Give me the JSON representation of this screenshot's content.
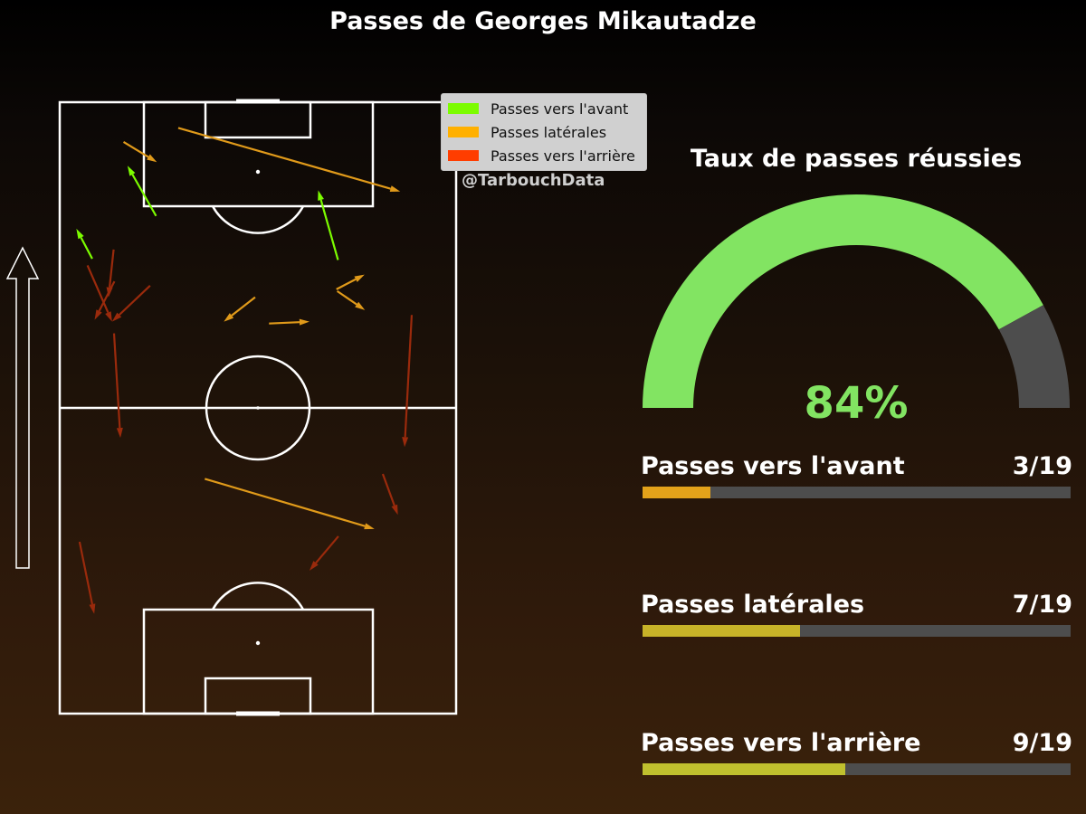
{
  "title": "Passes de Georges Mikautadze",
  "credit": "@TarbouchData",
  "colors": {
    "forward": "#7cfc00",
    "lateral": "#e09a1a",
    "backward": "#9a2a0c",
    "gauge_success": "#82e462",
    "gauge_rest": "#4d4d4d",
    "bar_track": "#4d4d4d"
  },
  "legend": [
    {
      "label": "Passes vers l'avant",
      "color": "#7cfc00"
    },
    {
      "label": "Passes latérales",
      "color": "#ffb000"
    },
    {
      "label": "Passes vers l'arrière",
      "color": "#ff3d00"
    }
  ],
  "direction_icon": "up-arrow-icon",
  "chart_data": [
    {
      "type": "pass-map",
      "pitch": {
        "length": 100,
        "width": 100,
        "orientation": "vertical",
        "attack_direction": "up"
      },
      "passes": {
        "forward": [
          {
            "x1": 24.3,
            "y1": 81.4,
            "x2": 17.1,
            "y2": 89.6
          },
          {
            "x1": 8.2,
            "y1": 74.4,
            "x2": 4.2,
            "y2": 79.3
          },
          {
            "x1": 70.2,
            "y1": 74.2,
            "x2": 65.2,
            "y2": 85.6
          }
        ],
        "lateral": [
          {
            "x1": 16.1,
            "y1": 93.5,
            "x2": 24.5,
            "y2": 90.2
          },
          {
            "x1": 29.9,
            "y1": 95.8,
            "x2": 85.9,
            "y2": 85.4
          },
          {
            "x1": 49.3,
            "y1": 68.1,
            "x2": 41.4,
            "y2": 64.1
          },
          {
            "x1": 52.8,
            "y1": 63.8,
            "x2": 63.0,
            "y2": 64.1
          },
          {
            "x1": 69.8,
            "y1": 69.4,
            "x2": 76.9,
            "y2": 71.8
          },
          {
            "x1": 70.0,
            "y1": 69.1,
            "x2": 77.0,
            "y2": 66.0
          },
          {
            "x1": 36.6,
            "y1": 38.4,
            "x2": 79.4,
            "y2": 30.2
          }
        ],
        "backward": [
          {
            "x1": 13.6,
            "y1": 75.9,
            "x2": 12.3,
            "y2": 68.1
          },
          {
            "x1": 7.0,
            "y1": 73.3,
            "x2": 13.2,
            "y2": 64.1
          },
          {
            "x1": 22.8,
            "y1": 70.0,
            "x2": 13.2,
            "y2": 64.1
          },
          {
            "x1": 13.8,
            "y1": 70.7,
            "x2": 8.8,
            "y2": 64.4
          },
          {
            "x1": 13.7,
            "y1": 62.2,
            "x2": 15.3,
            "y2": 45.1
          },
          {
            "x1": 88.8,
            "y1": 65.2,
            "x2": 87.0,
            "y2": 43.6
          },
          {
            "x1": 81.5,
            "y1": 39.2,
            "x2": 85.3,
            "y2": 32.5
          },
          {
            "x1": 70.3,
            "y1": 29.0,
            "x2": 63.0,
            "y2": 23.4
          },
          {
            "x1": 5.0,
            "y1": 28.1,
            "x2": 8.7,
            "y2": 16.3
          }
        ]
      }
    },
    {
      "type": "gauge",
      "title": "Taux de passes réussies",
      "value": 84,
      "max": 100,
      "label": "84%"
    },
    {
      "type": "bar",
      "orientation": "horizontal",
      "categories": [
        "Passes vers l'avant",
        "Passes latérales",
        "Passes vers l'arrière"
      ],
      "values": [
        3,
        7,
        9
      ],
      "totals": [
        19,
        19,
        19
      ],
      "labels": [
        "3/19",
        "7/19",
        "9/19"
      ],
      "colors": [
        "#e3a21a",
        "#c7b328",
        "#c0c02e"
      ]
    }
  ]
}
